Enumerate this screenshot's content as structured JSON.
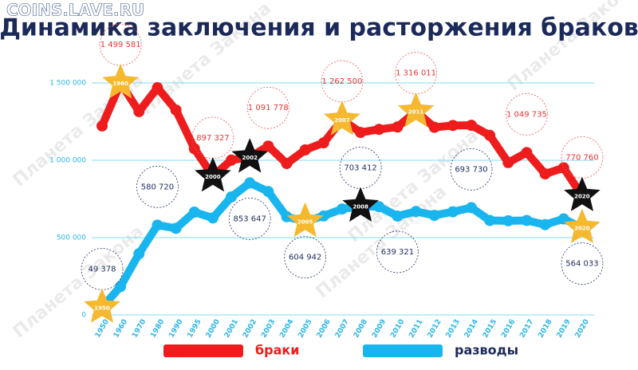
{
  "watermark": "Планета Закона",
  "site": "COINS.LAVE.RU",
  "chart_data": {
    "type": "line",
    "title": "Динамика заключения и расторжения браков",
    "categories": [
      "1950",
      "1960",
      "1970",
      "1980",
      "1990",
      "1995",
      "2000",
      "2001",
      "2002",
      "2003",
      "2004",
      "2005",
      "2006",
      "2007",
      "2008",
      "2009",
      "2010",
      "2011",
      "2012",
      "2013",
      "2014",
      "2015",
      "2016",
      "2017",
      "2018",
      "2019",
      "2020"
    ],
    "ylim": [
      0,
      1600000
    ],
    "yticks": [
      0,
      {
        "value": 500000,
        "label": "500 000"
      },
      {
        "value": 1000000,
        "label": "1 000 000"
      },
      {
        "value": 1500000,
        "label": "1 500 000"
      }
    ],
    "grid": true,
    "series": [
      {
        "name": "браки",
        "color": "#ee1c1c",
        "values": [
          1222000,
          1499581,
          1315000,
          1469000,
          1325000,
          1075000,
          897327,
          1001000,
          1020000,
          1091778,
          979000,
          1067000,
          1113000,
          1262500,
          1180000,
          1200000,
          1215000,
          1316011,
          1213000,
          1225000,
          1226000,
          1161000,
          985000,
          1049735,
          912000,
          951000,
          770760
        ],
        "value_labels": [
          null,
          "1 499 581",
          null,
          null,
          null,
          null,
          "897 327",
          null,
          null,
          "1 091 778",
          null,
          null,
          null,
          "1 262 500",
          null,
          null,
          null,
          "1 316 011",
          null,
          null,
          null,
          null,
          null,
          "1 049 735",
          null,
          null,
          "770 760"
        ],
        "highlights": [
          {
            "index": 1,
            "color": "#f5b82e"
          },
          {
            "index": 6,
            "color": "#111111"
          },
          {
            "index": 8,
            "color": "#111111"
          },
          {
            "index": 13,
            "color": "#f5b82e"
          },
          {
            "index": 17,
            "color": "#f5b82e"
          },
          {
            "index": 26,
            "color": "#111111"
          }
        ]
      },
      {
        "name": "разводы",
        "color": "#19b5ee",
        "values": [
          49378,
          184000,
          396000,
          580720,
          560000,
          665000,
          627000,
          763000,
          853647,
          798000,
          635000,
          604942,
          640000,
          685000,
          703412,
          700000,
          639321,
          669000,
          644000,
          667000,
          693730,
          611000,
          609000,
          611000,
          584000,
          621000,
          564033
        ],
        "value_labels": [
          "49 378",
          null,
          null,
          "580 720",
          null,
          null,
          null,
          null,
          "853 647",
          null,
          null,
          "604 942",
          null,
          null,
          "703 412",
          null,
          "639 321",
          null,
          null,
          null,
          "693 730",
          null,
          null,
          null,
          null,
          null,
          "564 033"
        ],
        "highlights": [
          {
            "index": 0,
            "color": "#f5b82e"
          },
          {
            "index": 11,
            "color": "#f5b82e"
          },
          {
            "index": 14,
            "color": "#111111"
          },
          {
            "index": 26,
            "color": "#f5b82e"
          }
        ]
      }
    ]
  }
}
